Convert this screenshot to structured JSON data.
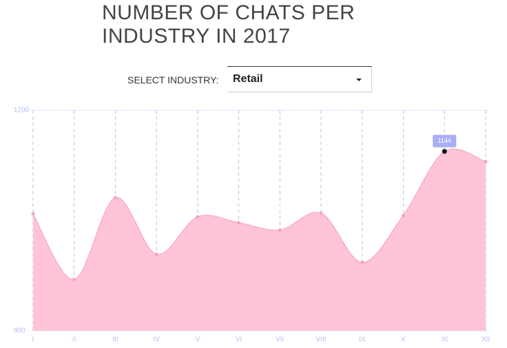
{
  "header": {
    "title_line1": "NUMBER OF CHATS PER",
    "title_line2": "INDUSTRY IN 2017"
  },
  "selector": {
    "label": "SELECT INDUSTRY:",
    "value": "Retail"
  },
  "chart_data": {
    "type": "area",
    "categories": [
      "I",
      "II",
      "III",
      "IV",
      "V",
      "VI",
      "VII",
      "VIII",
      "IX",
      "X",
      "XI",
      "XII"
    ],
    "values": [
      1059,
      970,
      1081,
      1004,
      1055,
      1047,
      1037,
      1060,
      993,
      1057,
      1144,
      1130
    ],
    "color": "#ffc2d4",
    "ylim": [
      900,
      1200
    ],
    "yticks": [
      900,
      1200
    ],
    "grid": true,
    "highlight_index": 10
  }
}
